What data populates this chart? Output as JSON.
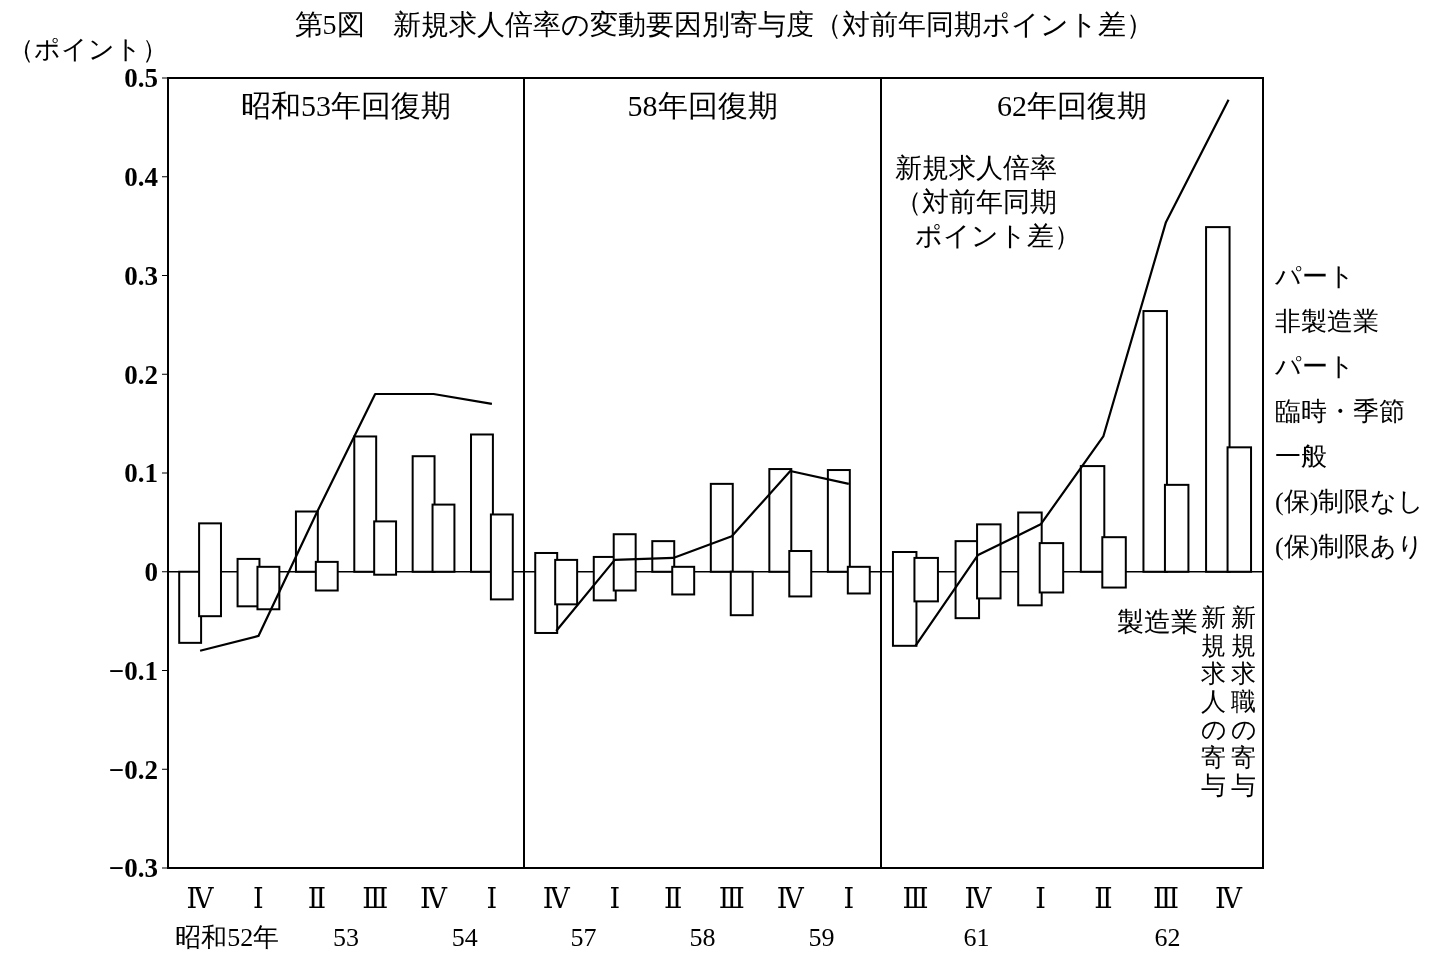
{
  "chart_data": [
    {
      "type": "bar",
      "title": "第5図　新規求人倍率の変動要因別寄与度（対前年同期ポイント差）",
      "subtitle": "昭和53年回復期",
      "ylabel": "（ポイント）",
      "categories": [
        "Ⅳ",
        "Ⅰ",
        "Ⅱ",
        "Ⅲ",
        "Ⅳ",
        "Ⅰ"
      ],
      "ylim": [
        -0.3,
        0.5
      ],
      "yticks": [
        {
          "value": -0.3,
          "label": "−0.3"
        },
        {
          "value": -0.2,
          "label": "−0.2"
        },
        {
          "value": -0.1,
          "label": "−0.1"
        },
        0,
        0.1,
        0.2,
        0.3,
        0.4,
        0.5
      ],
      "series": [
        {
          "color": "#ffffff",
          "base": [
            -0.072,
            -0.035,
            0,
            0,
            0,
            0
          ],
          "values": [
            0.072,
            0.048,
            0.061,
            0.137,
            0.117,
            0.139
          ]
        },
        {
          "color": "#ffffff",
          "base": [
            -0.045,
            -0.038,
            -0.019,
            -0.003,
            0,
            -0.028
          ],
          "values": [
            0.094,
            0.043,
            0.029,
            0.054,
            0.068,
            0.086
          ]
        },
        {
          "type": "line",
          "color": "#000000",
          "values": [
            -0.08,
            -0.065,
            0.06,
            0.18,
            0.18,
            0.17
          ]
        }
      ],
      "annotations": [
        "昭和52年",
        "53",
        "54"
      ]
    },
    {
      "type": "bar",
      "subtitle": "58年回復期",
      "categories": [
        "Ⅳ",
        "Ⅰ",
        "Ⅱ",
        "Ⅲ",
        "Ⅳ",
        "Ⅰ"
      ],
      "ylim": [
        -0.3,
        0.5
      ],
      "tick_labels": "x",
      "series": [
        {
          "color": "#ffffff",
          "base": [
            -0.062,
            -0.029,
            0,
            0,
            0,
            0
          ],
          "values": [
            0.081,
            0.044,
            0.031,
            0.089,
            0.104,
            0.103
          ]
        },
        {
          "color": "#ffffff",
          "base": [
            -0.033,
            -0.019,
            -0.023,
            -0.044,
            -0.025,
            -0.022
          ],
          "values": [
            0.045,
            0.057,
            0.028,
            0.044,
            0.046,
            0.027
          ]
        },
        {
          "type": "line",
          "color": "#000000",
          "values": [
            -0.06,
            0.012,
            0.014,
            0.036,
            0.102,
            0.089
          ]
        }
      ],
      "annotations": [
        "57",
        "58",
        "59"
      ]
    },
    {
      "type": "bar",
      "subtitle": "62年回復期",
      "categories": [
        "Ⅲ",
        "Ⅳ",
        "Ⅰ",
        "Ⅱ",
        "Ⅲ",
        "Ⅳ"
      ],
      "ylim": [
        -0.3,
        0.5
      ],
      "tick_labels": "x",
      "series": [
        {
          "name": "新規求人の寄与",
          "color": "#ffffff",
          "base": [
            -0.075,
            -0.047,
            -0.034,
            0,
            0,
            0
          ],
          "values": [
            0.095,
            0.078,
            0.094,
            0.107,
            0.264,
            0.349
          ]
        },
        {
          "name": "新規求職の寄与",
          "color": "#ffffff",
          "base": [
            -0.03,
            -0.027,
            -0.021,
            -0.016,
            0,
            0
          ],
          "values": [
            0.044,
            0.075,
            0.05,
            0.051,
            0.088,
            0.126
          ]
        },
        {
          "type": "line",
          "name": "新規求人倍率（対前年同期ポイント差）",
          "color": "#000000",
          "values": [
            -0.075,
            0.017,
            0.048,
            0.137,
            0.354,
            0.478
          ]
        }
      ],
      "annotations": [
        "61",
        "62",
        {
          "text": "パート"
        },
        {
          "text": "非製造業"
        },
        {
          "text": "パート"
        },
        {
          "text": "臨時・季節"
        },
        {
          "text": "一般"
        },
        {
          "text": "(保)制限なし"
        },
        {
          "text": "(保)制限あり"
        },
        {
          "text": "製造業"
        }
      ]
    }
  ]
}
